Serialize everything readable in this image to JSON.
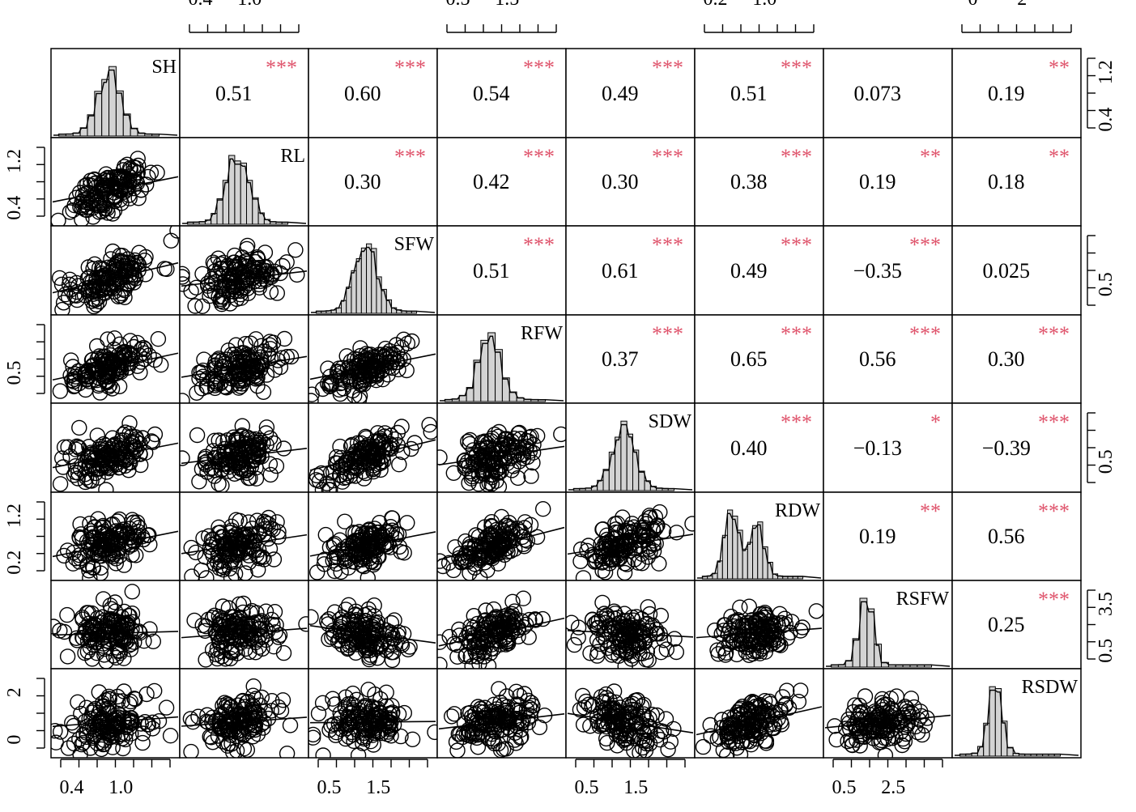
{
  "chart_data": {
    "type": "scatter",
    "subtype": "correlation-matrix",
    "variables": [
      "SH",
      "RL",
      "SFW",
      "RFW",
      "SDW",
      "RDW",
      "RSFW",
      "RSDW"
    ],
    "top_axes": [
      {
        "column": 1,
        "ticks": [
          "0.4",
          "1.0"
        ]
      },
      {
        "column": 3,
        "ticks": [
          "0.5",
          "1.5"
        ]
      },
      {
        "column": 5,
        "ticks": [
          "0.2",
          "1.0"
        ]
      },
      {
        "column": 7,
        "ticks": [
          "0",
          "2"
        ]
      }
    ],
    "bottom_axes": [
      {
        "column": 0,
        "ticks": [
          "0.4",
          "1.0"
        ]
      },
      {
        "column": 2,
        "ticks": [
          "0.5",
          "1.5"
        ]
      },
      {
        "column": 4,
        "ticks": [
          "0.5",
          "1.5"
        ]
      },
      {
        "column": 6,
        "ticks": [
          "0.5",
          "2.5"
        ]
      }
    ],
    "left_axes": [
      {
        "row": 1,
        "ticks": [
          "0.4",
          "1.2"
        ]
      },
      {
        "row": 3,
        "ticks": [
          "0.5"
        ]
      },
      {
        "row": 5,
        "ticks": [
          "0.2",
          "1.2"
        ]
      },
      {
        "row": 7,
        "ticks": [
          "0",
          "2"
        ]
      }
    ],
    "right_axes": [
      {
        "row": 0,
        "ticks": [
          "0.4",
          "1.2"
        ]
      },
      {
        "row": 2,
        "ticks": [
          "0.5"
        ]
      },
      {
        "row": 4,
        "ticks": [
          "0.5"
        ]
      },
      {
        "row": 6,
        "ticks": [
          "0.5",
          "3.5"
        ]
      }
    ],
    "correlations": [
      {
        "row": 0,
        "col": 1,
        "r": "0.51",
        "sig": "***"
      },
      {
        "row": 0,
        "col": 2,
        "r": "0.60",
        "sig": "***"
      },
      {
        "row": 0,
        "col": 3,
        "r": "0.54",
        "sig": "***"
      },
      {
        "row": 0,
        "col": 4,
        "r": "0.49",
        "sig": "***"
      },
      {
        "row": 0,
        "col": 5,
        "r": "0.51",
        "sig": "***"
      },
      {
        "row": 0,
        "col": 6,
        "r": "0.073",
        "sig": ""
      },
      {
        "row": 0,
        "col": 7,
        "r": "0.19",
        "sig": "**"
      },
      {
        "row": 1,
        "col": 2,
        "r": "0.30",
        "sig": "***"
      },
      {
        "row": 1,
        "col": 3,
        "r": "0.42",
        "sig": "***"
      },
      {
        "row": 1,
        "col": 4,
        "r": "0.30",
        "sig": "***"
      },
      {
        "row": 1,
        "col": 5,
        "r": "0.38",
        "sig": "***"
      },
      {
        "row": 1,
        "col": 6,
        "r": "0.19",
        "sig": "**"
      },
      {
        "row": 1,
        "col": 7,
        "r": "0.18",
        "sig": "**"
      },
      {
        "row": 2,
        "col": 3,
        "r": "0.51",
        "sig": "***"
      },
      {
        "row": 2,
        "col": 4,
        "r": "0.61",
        "sig": "***"
      },
      {
        "row": 2,
        "col": 5,
        "r": "0.49",
        "sig": "***"
      },
      {
        "row": 2,
        "col": 6,
        "r": "−0.35",
        "sig": "***"
      },
      {
        "row": 2,
        "col": 7,
        "r": "0.025",
        "sig": ""
      },
      {
        "row": 3,
        "col": 4,
        "r": "0.37",
        "sig": "***"
      },
      {
        "row": 3,
        "col": 5,
        "r": "0.65",
        "sig": "***"
      },
      {
        "row": 3,
        "col": 6,
        "r": "0.56",
        "sig": "***"
      },
      {
        "row": 3,
        "col": 7,
        "r": "0.30",
        "sig": "***"
      },
      {
        "row": 4,
        "col": 5,
        "r": "0.40",
        "sig": "***"
      },
      {
        "row": 4,
        "col": 6,
        "r": "−0.13",
        "sig": "*"
      },
      {
        "row": 4,
        "col": 7,
        "r": "−0.39",
        "sig": "***"
      },
      {
        "row": 5,
        "col": 6,
        "r": "0.19",
        "sig": "**"
      },
      {
        "row": 5,
        "col": 7,
        "r": "0.56",
        "sig": "***"
      },
      {
        "row": 6,
        "col": 7,
        "r": "0.25",
        "sig": "***"
      }
    ],
    "colors": {
      "significance": "#df536b",
      "histogram_fill": "#d3d3d3",
      "stroke": "#000000",
      "background": "#ffffff"
    }
  }
}
